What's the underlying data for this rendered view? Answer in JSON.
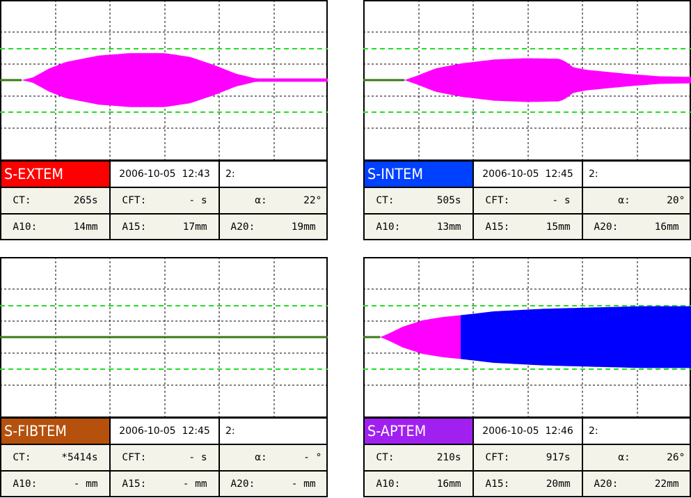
{
  "chart_data": [
    {
      "type": "area",
      "test": "S-EXTEM",
      "test_color": "#ff0000",
      "date": "2006-10-05",
      "time": "12:43",
      "channel": "2:",
      "params": {
        "CT": "265s",
        "CFT": "- s",
        "alpha": "22°",
        "A10": "14mm",
        "A15": "17mm",
        "A20": "19mm"
      },
      "trace": {
        "ct": 0.066,
        "profile": [
          [
            0.066,
            0
          ],
          [
            0.1,
            2
          ],
          [
            0.15,
            9
          ],
          [
            0.2,
            14
          ],
          [
            0.3,
            19
          ],
          [
            0.4,
            21
          ],
          [
            0.5,
            21
          ],
          [
            0.58,
            18
          ],
          [
            0.65,
            12
          ],
          [
            0.72,
            5
          ],
          [
            0.78,
            1.3
          ],
          [
            1.0,
            1.3
          ]
        ]
      }
    },
    {
      "type": "area",
      "test": "S-INTEM",
      "test_color": "#0040ff",
      "date": "2006-10-05",
      "time": "12:45",
      "channel": "2:",
      "params": {
        "CT": "505s",
        "CFT": "- s",
        "alpha": "20°",
        "A10": "13mm",
        "A15": "15mm",
        "A20": "16mm"
      },
      "trace": {
        "ct": 0.126,
        "profile": [
          [
            0.126,
            0
          ],
          [
            0.16,
            3
          ],
          [
            0.22,
            9
          ],
          [
            0.3,
            13
          ],
          [
            0.4,
            16
          ],
          [
            0.5,
            17
          ],
          [
            0.6,
            16.5
          ],
          [
            0.62,
            14
          ],
          [
            0.64,
            10
          ],
          [
            0.68,
            8
          ],
          [
            0.8,
            5
          ],
          [
            0.9,
            3
          ],
          [
            1.0,
            2.5
          ]
        ]
      }
    },
    {
      "type": "area",
      "test": "S-FIBTEM",
      "test_color": "#b5510d",
      "date": "2006-10-05",
      "time": "12:45",
      "channel": "2:",
      "params": {
        "CT": "*5414s",
        "CFT": "- s",
        "alpha": "- °",
        "A10": "- mm",
        "A15": "- mm",
        "A20": "- mm"
      },
      "trace": {
        "ct": 1.0,
        "profile": []
      }
    },
    {
      "type": "area",
      "test": "S-APTEM",
      "test_color": "#a020f0",
      "date": "2006-10-05",
      "time": "12:46",
      "channel": "2:",
      "params": {
        "CT": "210s",
        "CFT": "917s",
        "alpha": "26°",
        "A10": "16mm",
        "A15": "20mm",
        "A20": "22mm"
      },
      "trace": {
        "ct": 0.052,
        "switch": 0.297,
        "profile": [
          [
            0.052,
            0
          ],
          [
            0.08,
            3
          ],
          [
            0.12,
            8
          ],
          [
            0.18,
            13
          ],
          [
            0.24,
            15.5
          ],
          [
            0.297,
            17
          ],
          [
            0.4,
            20
          ],
          [
            0.55,
            22
          ],
          [
            0.7,
            23
          ],
          [
            0.85,
            24
          ],
          [
            1.0,
            24
          ]
        ]
      }
    }
  ]
}
